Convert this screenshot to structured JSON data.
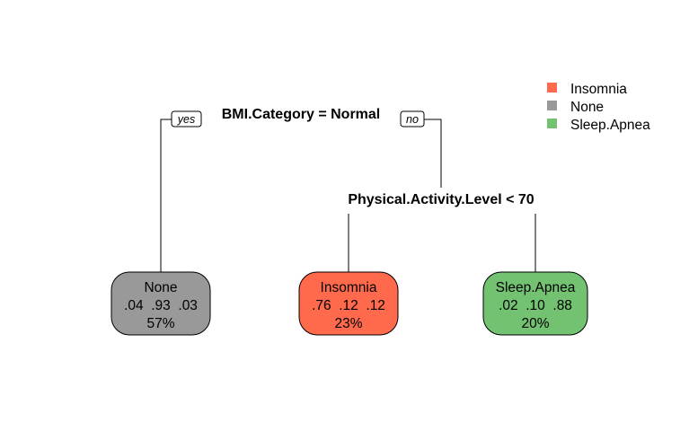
{
  "tree": {
    "root_split": "BMI.Category = Normal",
    "yes_label": "yes",
    "no_label": "no",
    "second_split": "Physical.Activity.Level < 70",
    "leaves": [
      {
        "class": "None",
        "probs": ".04  .93  .03",
        "percent": "57%",
        "color": "#999999"
      },
      {
        "class": "Insomnia",
        "probs": ".76  .12  .12",
        "percent": "23%",
        "color": "#FF6A4D"
      },
      {
        "class": "Sleep.Apnea",
        "probs": ".02  .10  .88",
        "percent": "20%",
        "color": "#72C272"
      }
    ]
  },
  "legend": {
    "items": [
      {
        "label": "Insomnia",
        "color": "#FF6A4D"
      },
      {
        "label": "None",
        "color": "#999999"
      },
      {
        "label": "Sleep.Apnea",
        "color": "#72C272"
      }
    ]
  }
}
